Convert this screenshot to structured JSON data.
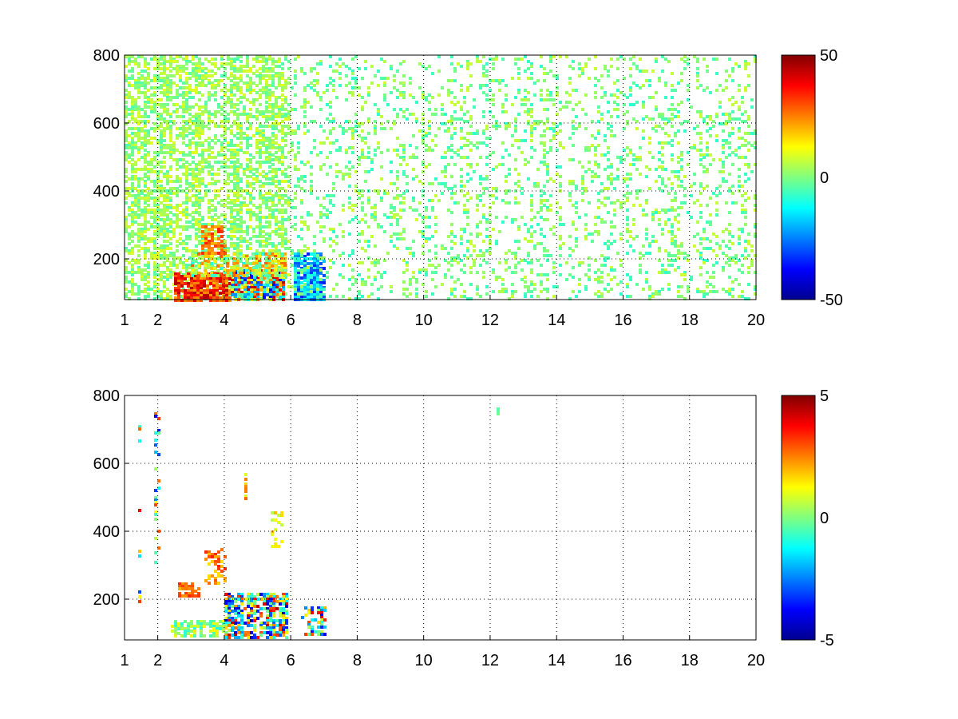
{
  "chart_data": [
    {
      "type": "heatmap",
      "x_ticks": [
        "1",
        "2",
        "4",
        "6",
        "8",
        "10",
        "12",
        "14",
        "16",
        "18",
        "20"
      ],
      "y_ticks": [
        "200",
        "400",
        "600",
        "800"
      ],
      "xlim": [
        1,
        20
      ],
      "ylim": [
        80,
        800
      ],
      "grid": true,
      "colorbar": {
        "min": -50,
        "max": 50,
        "ticks": [
          "50",
          "0",
          "-50"
        ],
        "colormap": "jet"
      },
      "regions": [
        {
          "x": [
            1.0,
            6.0
          ],
          "y": [
            80,
            800
          ],
          "density": 0.55,
          "value_range": [
            -5,
            10
          ]
        },
        {
          "x": [
            2.5,
            4.2
          ],
          "y": [
            80,
            160
          ],
          "density": 0.9,
          "value_range": [
            20,
            45
          ]
        },
        {
          "x": [
            4.2,
            5.8
          ],
          "y": [
            80,
            170
          ],
          "density": 0.9,
          "value_range": [
            -40,
            45
          ]
        },
        {
          "x": [
            3.0,
            5.8
          ],
          "y": [
            150,
            220
          ],
          "density": 0.7,
          "value_range": [
            -10,
            30
          ]
        },
        {
          "x": [
            3.3,
            4.0
          ],
          "y": [
            220,
            300
          ],
          "density": 0.6,
          "value_range": [
            20,
            35
          ]
        },
        {
          "x": [
            6.1,
            7.0
          ],
          "y": [
            80,
            220
          ],
          "density": 0.8,
          "value_range": [
            -35,
            -5
          ]
        },
        {
          "x": [
            6.0,
            20.0
          ],
          "y": [
            80,
            800
          ],
          "density": 0.18,
          "value_range": [
            -8,
            8
          ]
        }
      ]
    },
    {
      "type": "heatmap",
      "x_ticks": [
        "1",
        "2",
        "4",
        "6",
        "8",
        "10",
        "12",
        "14",
        "16",
        "18",
        "20"
      ],
      "y_ticks": [
        "200",
        "400",
        "600",
        "800"
      ],
      "xlim": [
        1,
        20
      ],
      "ylim": [
        80,
        800
      ],
      "grid": true,
      "colorbar": {
        "min": -5,
        "max": 5,
        "ticks": [
          "5",
          "0",
          "-5"
        ],
        "colormap": "jet"
      },
      "regions": [
        {
          "x": [
            2.4,
            4.0
          ],
          "y": [
            90,
            140
          ],
          "density": 0.65,
          "value_range": [
            -1,
            1.5
          ]
        },
        {
          "x": [
            4.0,
            5.9
          ],
          "y": [
            90,
            220
          ],
          "density": 0.7,
          "value_range": [
            -4.5,
            4.5
          ]
        },
        {
          "x": [
            2.6,
            3.2
          ],
          "y": [
            210,
            250
          ],
          "density": 0.6,
          "value_range": [
            2,
            3.5
          ]
        },
        {
          "x": [
            3.4,
            4.0
          ],
          "y": [
            250,
            350
          ],
          "density": 0.5,
          "value_range": [
            1.5,
            3.5
          ]
        },
        {
          "x": [
            4.6,
            4.7
          ],
          "y": [
            480,
            580
          ],
          "density": 0.7,
          "value_range": [
            0.5,
            3
          ]
        },
        {
          "x": [
            5.4,
            5.7
          ],
          "y": [
            350,
            460
          ],
          "density": 0.4,
          "value_range": [
            0.5,
            2
          ]
        },
        {
          "x": [
            6.3,
            7.0
          ],
          "y": [
            100,
            180
          ],
          "density": 0.6,
          "value_range": [
            -4,
            4
          ]
        },
        {
          "x": [
            1.9,
            2.0
          ],
          "y": [
            300,
            750
          ],
          "density": 0.25,
          "value_range": [
            -4,
            4
          ]
        },
        {
          "x": [
            1.4,
            1.5
          ],
          "y": [
            100,
            720
          ],
          "density": 0.12,
          "value_range": [
            -4,
            4
          ]
        },
        {
          "x": [
            12.2,
            12.3
          ],
          "y": [
            745,
            765
          ],
          "density": 1.0,
          "value_range": [
            -0.5,
            0
          ]
        }
      ]
    }
  ]
}
